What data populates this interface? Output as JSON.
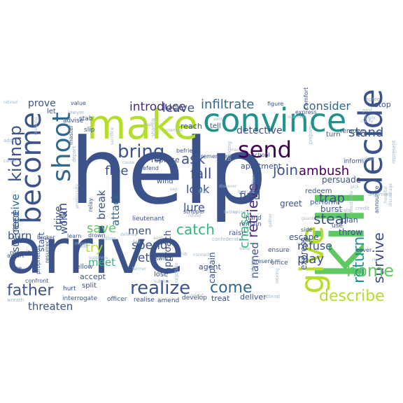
{
  "wordcloud": {
    "words": [
      {
        "text": "help",
        "color": "#3b528b"
      },
      {
        "text": "arrive",
        "color": "#3b528b"
      },
      {
        "text": "kill",
        "color": "#5ec962"
      },
      {
        "text": "make",
        "color": "#b5de2b"
      },
      {
        "text": "convince",
        "color": "#21918c"
      },
      {
        "text": "decide",
        "color": "#3b528b"
      },
      {
        "text": "give",
        "color": "#b5de2b"
      },
      {
        "text": "become",
        "color": "#3b528b"
      },
      {
        "text": "shoot",
        "color": "#31688e"
      },
      {
        "text": "send",
        "color": "#440154"
      },
      {
        "text": "kidnap",
        "color": "#3b528b"
      },
      {
        "text": "return",
        "color": "#21918c"
      },
      {
        "text": "survive",
        "color": "#3e4989"
      },
      {
        "text": "bring",
        "color": "#3b528b"
      },
      {
        "text": "home",
        "color": "#5ec962"
      },
      {
        "text": "realize",
        "color": "#3b528b"
      },
      {
        "text": "father",
        "color": "#3b528b"
      },
      {
        "text": "come",
        "color": "#31688e"
      },
      {
        "text": "describe",
        "color": "#b5de2b"
      },
      {
        "text": "catch",
        "color": "#35b779"
      },
      {
        "text": "retrieve",
        "color": "#472d7b"
      },
      {
        "text": "join",
        "color": "#3b528b"
      },
      {
        "text": "steal",
        "color": "#3b528b"
      },
      {
        "text": "fall",
        "color": "#3b528b"
      },
      {
        "text": "ask",
        "color": "#3b528b"
      },
      {
        "text": "chase",
        "color": "#35b779"
      },
      {
        "text": "play",
        "color": "#3b528b"
      },
      {
        "text": "infiltrate",
        "color": "#31688e"
      },
      {
        "text": "introduce",
        "color": "#472d7b"
      },
      {
        "text": "leave",
        "color": "#3b528b"
      },
      {
        "text": "consider",
        "color": "#31688e"
      },
      {
        "text": "stand",
        "color": "#3b528b"
      },
      {
        "text": "ambush",
        "color": "#440154"
      },
      {
        "text": "trap",
        "color": "#3b528b"
      },
      {
        "text": "flee",
        "color": "#3b528b"
      },
      {
        "text": "run",
        "color": "#3b528b"
      },
      {
        "text": "save",
        "color": "#5ec962"
      },
      {
        "text": "try",
        "color": "#b5de2b"
      },
      {
        "text": "spend",
        "color": "#3b528b"
      },
      {
        "text": "set",
        "color": "#3b528b"
      },
      {
        "text": "attack",
        "color": "#31688e"
      },
      {
        "text": "break",
        "color": "#3b528b"
      },
      {
        "text": "lure",
        "color": "#3b528b"
      },
      {
        "text": "look",
        "color": "#3b528b"
      },
      {
        "text": "find",
        "color": "#3b528b"
      },
      {
        "text": "named",
        "color": "#3b528b"
      },
      {
        "text": "refuse",
        "color": "#3b528b"
      },
      {
        "text": "receive",
        "color": "#31688e"
      },
      {
        "text": "succeed",
        "color": "#3b528b"
      },
      {
        "text": "work",
        "color": "#3b528b"
      },
      {
        "text": "drive",
        "color": "#3b528b"
      },
      {
        "text": "men",
        "color": "#3b528b"
      },
      {
        "text": "meet",
        "color": "#35b779"
      },
      {
        "text": "threaten",
        "color": "#3b528b"
      },
      {
        "text": "burn",
        "color": "#3b528b"
      },
      {
        "text": "prove",
        "color": "#3b528b"
      },
      {
        "text": "start",
        "color": "#3b528b"
      },
      {
        "text": "detective",
        "color": "#3b528b"
      },
      {
        "text": "escape",
        "color": "#3b528b"
      },
      {
        "text": "burst",
        "color": "#3b528b"
      },
      {
        "text": "throw",
        "color": "#3b528b"
      },
      {
        "text": "persuade",
        "color": "#3b528b"
      },
      {
        "text": "greet",
        "color": "#3b528b"
      },
      {
        "text": "express",
        "color": "#3b528b"
      },
      {
        "text": "approach",
        "color": "#3b528b"
      },
      {
        "text": "captain",
        "color": "#3b528b"
      },
      {
        "text": "agent",
        "color": "#3b528b"
      },
      {
        "text": "treat",
        "color": "#3b528b"
      },
      {
        "text": "deliver",
        "color": "#3b528b"
      },
      {
        "text": "plan",
        "color": "#3b528b"
      },
      {
        "text": "perform",
        "color": "#3b528b"
      },
      {
        "text": "redeem",
        "color": "#3b528b"
      },
      {
        "text": "accept",
        "color": "#3b528b"
      },
      {
        "text": "lose",
        "color": "#3b528b"
      },
      {
        "text": "split",
        "color": "#3b528b"
      },
      {
        "text": "interrogate",
        "color": "#3b528b"
      },
      {
        "text": "officer",
        "color": "#3b528b"
      },
      {
        "text": "realise",
        "color": "#3b528b"
      },
      {
        "text": "amend",
        "color": "#3b528b"
      },
      {
        "text": "fellow",
        "color": "#3b528b"
      },
      {
        "text": "hurt",
        "color": "#3b528b"
      },
      {
        "text": "raise",
        "color": "#3b528b"
      },
      {
        "text": "remain",
        "color": "#3b528b"
      },
      {
        "text": "tell",
        "color": "#3b528b"
      },
      {
        "text": "reach",
        "color": "#3b528b"
      },
      {
        "text": "apartment",
        "color": "#3b528b"
      },
      {
        "text": "turn",
        "color": "#3b528b"
      },
      {
        "text": "remove",
        "color": "#3b528b"
      },
      {
        "text": "stop",
        "color": "#3b528b"
      },
      {
        "text": "replace",
        "color": "#3b528b"
      },
      {
        "text": "school",
        "color": "#3b528b"
      },
      {
        "text": "wind",
        "color": "#3b528b"
      },
      {
        "text": "relay",
        "color": "#3b528b"
      },
      {
        "text": "stripper",
        "color": "#3b528b"
      },
      {
        "text": "remember",
        "color": "#3b528b"
      },
      {
        "text": "befriend",
        "color": "#3b528b"
      },
      {
        "text": "defend",
        "color": "#3b528b"
      },
      {
        "text": "let",
        "color": "#3b528b"
      },
      {
        "text": "stab",
        "color": "#3b528b"
      },
      {
        "text": "advise",
        "color": "#3b528b"
      },
      {
        "text": "slip",
        "color": "#3b528b"
      },
      {
        "text": "value",
        "color": "#3b528b"
      },
      {
        "text": "lawyer",
        "color": "#3b528b"
      },
      {
        "text": "master",
        "color": "#3b528b"
      },
      {
        "text": "resurrect",
        "color": "#3b528b"
      },
      {
        "text": "learn",
        "color": "#3b528b"
      },
      {
        "text": "drown",
        "color": "#3b528b"
      },
      {
        "text": "lieutenant",
        "color": "#3b528b"
      },
      {
        "text": "goon",
        "color": "#3b528b"
      },
      {
        "text": "switch",
        "color": "#3b528b"
      },
      {
        "text": "develop",
        "color": "#3b528b"
      },
      {
        "text": "present",
        "color": "#3b528b"
      },
      {
        "text": "office",
        "color": "#3b528b"
      },
      {
        "text": "fire",
        "color": "#3b528b"
      },
      {
        "text": "confront",
        "color": "#3b528b"
      },
      {
        "text": "broker",
        "color": "#3b528b"
      },
      {
        "text": "proprietor",
        "color": "#3b528b"
      },
      {
        "text": "recruit",
        "color": "#3b528b"
      },
      {
        "text": "assert",
        "color": "#3b528b"
      },
      {
        "text": "hand",
        "color": "#3b528b"
      },
      {
        "text": "inform",
        "color": "#3b528b"
      },
      {
        "text": "represent",
        "color": "#3b528b"
      },
      {
        "text": "announce",
        "color": "#3b528b"
      },
      {
        "text": "side",
        "color": "#3b528b"
      },
      {
        "text": "use",
        "color": "#3b528b"
      },
      {
        "text": "ensure",
        "color": "#3b528b"
      },
      {
        "text": "cover",
        "color": "#3b528b"
      },
      {
        "text": "indicate",
        "color": "#3b528b"
      },
      {
        "text": "credit",
        "color": "#3b528b"
      },
      {
        "text": "attend",
        "color": "#3b528b"
      },
      {
        "text": "prepare",
        "color": "#3b528b"
      },
      {
        "text": "comfort",
        "color": "#3b528b"
      },
      {
        "text": "figure",
        "color": "#3b528b"
      },
      {
        "text": "express",
        "color": "#3b528b"
      },
      {
        "text": "wreath",
        "color": "#3b528b"
      },
      {
        "text": "relent",
        "color": "#3b528b"
      },
      {
        "text": "rebellion",
        "color": "#3b528b"
      },
      {
        "text": "instruct",
        "color": "#3b528b"
      },
      {
        "text": "building",
        "color": "#3b528b"
      },
      {
        "text": "confederate",
        "color": "#3b528b"
      },
      {
        "text": "clarify",
        "color": "#3b528b"
      },
      {
        "text": "owner",
        "color": "#3b528b"
      },
      {
        "text": "argument",
        "color": "#3b528b"
      },
      {
        "text": "guard",
        "color": "#3b528b"
      },
      {
        "text": "interrupt",
        "color": "#3b528b"
      },
      {
        "text": "sharing",
        "color": "#3b528b"
      },
      {
        "text": "vent",
        "color": "#3b528b"
      },
      {
        "text": "intention",
        "color": "#3b528b"
      },
      {
        "text": "agree",
        "color": "#3b528b"
      },
      {
        "text": "defence",
        "color": "#3b528b"
      },
      {
        "text": "move",
        "color": "#3b528b"
      },
      {
        "text": "follow",
        "color": "#3b528b"
      },
      {
        "text": "aunt",
        "color": "#3b528b"
      },
      {
        "text": "rob",
        "color": "#3b528b"
      },
      {
        "text": "connect",
        "color": "#3b528b"
      },
      {
        "text": "farmer",
        "color": "#3b528b"
      },
      {
        "text": "fail",
        "color": "#3b528b"
      },
      {
        "text": "retired",
        "color": "#3b528b"
      },
      {
        "text": "adopt",
        "color": "#3b528b"
      },
      {
        "text": "career",
        "color": "#3b528b"
      },
      {
        "text": "suppress",
        "color": "#3b528b"
      },
      {
        "text": "remind",
        "color": "#3b528b"
      },
      {
        "text": "add",
        "color": "#3b528b"
      },
      {
        "text": "sleep",
        "color": "#3b528b"
      },
      {
        "text": "rip",
        "color": "#3b528b"
      },
      {
        "text": "prof",
        "color": "#3b528b"
      },
      {
        "text": "imply",
        "color": "#3b528b"
      },
      {
        "text": "hospital",
        "color": "#3b528b"
      },
      {
        "text": "discourage",
        "color": "#3b528b"
      },
      {
        "text": "investigate",
        "color": "#3b528b"
      },
      {
        "text": "sacrifice",
        "color": "#3b528b"
      },
      {
        "text": "cause",
        "color": "#3b528b"
      },
      {
        "text": "discover",
        "color": "#3b528b"
      },
      {
        "text": "betray",
        "color": "#3b528b"
      },
      {
        "text": "house",
        "color": "#3b528b"
      },
      {
        "text": "realizing",
        "color": "#3b528b"
      },
      {
        "text": "depart",
        "color": "#3b528b"
      },
      {
        "text": "promiscuity",
        "color": "#3b528b"
      },
      {
        "text": "wait",
        "color": "#3b528b"
      },
      {
        "text": "man",
        "color": "#3b528b"
      },
      {
        "text": "negotiate",
        "color": "#3b528b"
      },
      {
        "text": "go",
        "color": "#3b528b"
      },
      {
        "text": "pick",
        "color": "#3b528b"
      },
      {
        "text": "alcoholism",
        "color": "#3b528b"
      },
      {
        "text": "retiring",
        "color": "#3b528b"
      },
      {
        "text": "gather",
        "color": "#3b528b"
      },
      {
        "text": "subdue",
        "color": "#3b528b"
      },
      {
        "text": "say",
        "color": "#3b528b"
      },
      {
        "text": "lead",
        "color": "#3b528b"
      }
    ]
  }
}
